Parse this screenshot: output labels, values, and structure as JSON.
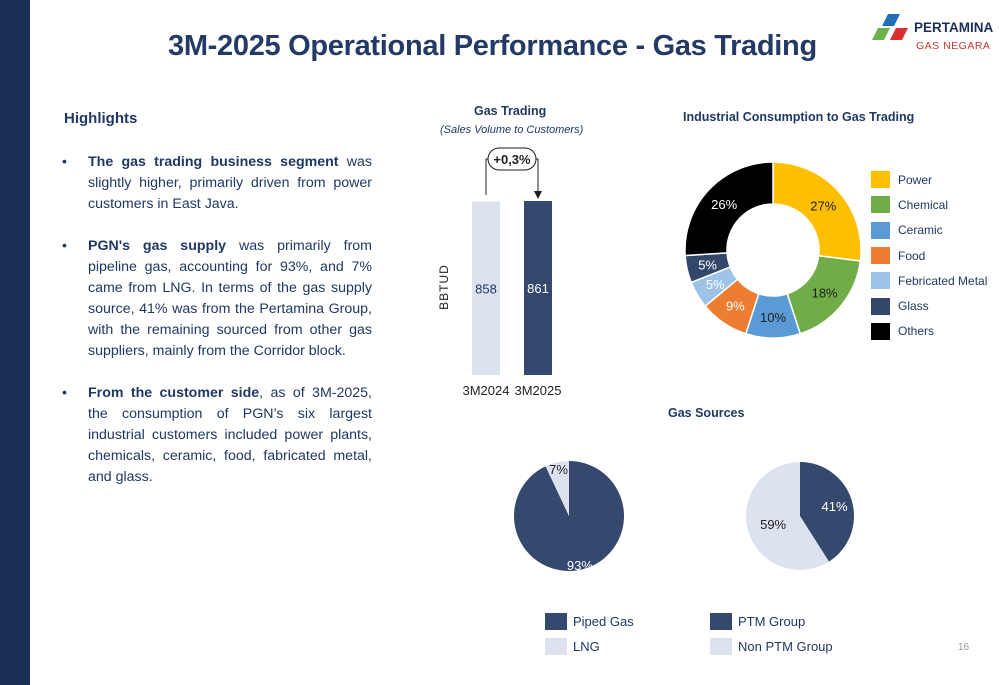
{
  "page": {
    "title": "3M-2025 Operational Performance - Gas Trading",
    "page_number": "16"
  },
  "logo": {
    "main": "PERTAMINA",
    "sub": "GAS NEGARA"
  },
  "highlights": {
    "title": "Highlights",
    "bullets": [
      {
        "bold": "The gas trading business segment",
        "text": " was slightly higher, primarily driven from power customers in East Java."
      },
      {
        "bold": "PGN's gas supply",
        "text": " was primarily from pipeline gas, accounting for 93%, and 7% came from LNG. In terms of the gas supply source, 41% was from the Pertamina Group, with the remaining sourced from other gas suppliers, mainly from the Corridor block."
      },
      {
        "bold": "From the customer side",
        "text": ", as of 3M-2025, the consumption of PGN’s six largest industrial customers included power plants, chemicals, ceramic, food, fabricated metal, and glass."
      }
    ]
  },
  "charts": {
    "gas_trading": {
      "title": "Gas Trading",
      "subtitle": "(Sales Volume to Customers)"
    },
    "industrial": {
      "title": "Industrial Consumption to Gas Trading"
    },
    "gas_sources": {
      "title": "Gas Sources"
    }
  },
  "chart_data": [
    {
      "type": "bar",
      "title": "Gas Trading",
      "subtitle": "(Sales Volume to Customers)",
      "ylabel": "BBTUD",
      "categories": [
        "3M2024",
        "3M2025"
      ],
      "values": [
        858,
        861
      ],
      "value_labels": [
        "858",
        "861"
      ],
      "colors": [
        "#dde3ee",
        "#34496d"
      ],
      "annotation": "+0,3%",
      "grid": false
    },
    {
      "type": "pie",
      "subtype": "donut",
      "title": "Industrial Consumption to Gas Trading",
      "legend_position": "right",
      "labels": [
        "Power",
        "Chemical",
        "Ceramic",
        "Food",
        "Febricated Metal",
        "Glass",
        "Others"
      ],
      "values": [
        27,
        18,
        10,
        9,
        5,
        5,
        26
      ],
      "value_labels": [
        "27%",
        "18%",
        "10%",
        "9%",
        "5%",
        "5%",
        "26%"
      ],
      "colors": [
        "#fdbf00",
        "#70ad47",
        "#5b9bd5",
        "#ed7d31",
        "#9dc3e6",
        "#33476b",
        "#000000"
      ]
    },
    {
      "type": "pie",
      "title": "Gas Sources",
      "legend_position": "bottom",
      "labels": [
        "Piped Gas",
        "LNG"
      ],
      "values": [
        93,
        7
      ],
      "value_labels": [
        "93%",
        "7%"
      ],
      "colors": [
        "#34496d",
        "#dde3ee"
      ]
    },
    {
      "type": "pie",
      "title": "Gas Sources",
      "legend_position": "bottom",
      "labels": [
        "PTM Group",
        "Non PTM Group"
      ],
      "values": [
        41,
        59
      ],
      "value_labels": [
        "41%",
        "59%"
      ],
      "colors": [
        "#34496d",
        "#dde3ee"
      ]
    }
  ]
}
